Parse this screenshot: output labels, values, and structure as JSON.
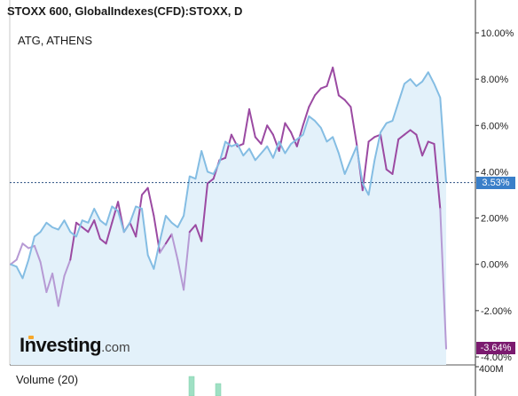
{
  "header": {
    "title": "STOXX 600, GlobalIndexes(CFD):STOXX, D",
    "compare_symbol": "ATG, ATHENS"
  },
  "logo": {
    "main": "Investing",
    "suffix": ".com"
  },
  "volume": {
    "label": "Volume (20)",
    "axis_label": "400M"
  },
  "badges": {
    "current_value": "3.53%",
    "athens_value": "-3.64%"
  },
  "colors": {
    "area_fill": "#e3f1fa",
    "area_line": "#84bde3",
    "athens_line": "#9b4aa2",
    "athens_line_light": "#b69ad4",
    "badge_blue": "#3a7fc9",
    "badge_purple": "#7b1a6f",
    "volume_bar": "#9fe0c4"
  },
  "chart_data": {
    "type": "line",
    "y_axis": {
      "side": "right",
      "unit": "%",
      "ylim": [
        -4.5,
        10.3
      ],
      "ticks": [
        10,
        8,
        6,
        4,
        2,
        0,
        -2,
        -4
      ],
      "tick_labels": [
        "10.00%",
        "8.00%",
        "6.00%",
        "4.00%",
        "2.00%",
        "0.00%",
        "-2.00%",
        "-4.00%"
      ]
    },
    "reference_line": {
      "value": 3.53,
      "label": "3.53%"
    },
    "grid": false,
    "legend": "top-left",
    "series": [
      {
        "name": "STOXX 600",
        "style": "area",
        "values": [
          0,
          -0.1,
          -0.6,
          0.2,
          1.2,
          1.4,
          1.8,
          1.6,
          1.5,
          1.9,
          1.4,
          1.2,
          1.9,
          1.8,
          2.4,
          1.9,
          1.7,
          2.5,
          2.3,
          1.4,
          1.8,
          2.5,
          2.4,
          0.4,
          -0.2,
          1.0,
          2.1,
          1.8,
          1.6,
          2.1,
          3.8,
          3.7,
          4.9,
          4.0,
          3.9,
          4.4,
          5.3,
          5.1,
          5.2,
          4.7,
          5.0,
          4.5,
          4.8,
          5.1,
          4.6,
          5.3,
          4.8,
          5.2,
          5.4,
          5.6,
          6.4,
          6.2,
          5.9,
          5.3,
          5.5,
          4.8,
          3.9,
          4.5,
          5.1,
          3.5,
          3.0,
          4.5,
          5.7,
          6.1,
          6.2,
          7.0,
          7.8,
          8.0,
          7.7,
          7.9,
          8.3,
          7.8,
          7.2,
          3.53
        ]
      },
      {
        "name": "ATG, ATHENS",
        "style": "line",
        "values": [
          0,
          0.2,
          0.9,
          0.7,
          0.8,
          0.1,
          -1.2,
          -0.4,
          -1.8,
          -0.5,
          0.2,
          1.8,
          1.6,
          1.4,
          1.9,
          1.1,
          0.9,
          1.8,
          2.7,
          1.4,
          1.8,
          1.2,
          3.0,
          3.3,
          2.1,
          0.5,
          0.9,
          1.3,
          0.2,
          -1.1,
          1.4,
          1.7,
          1.0,
          3.5,
          3.7,
          4.5,
          4.6,
          5.6,
          5.1,
          5.2,
          6.7,
          5.5,
          5.2,
          6.0,
          5.6,
          4.9,
          6.1,
          5.7,
          5.1,
          6.0,
          6.8,
          7.3,
          7.6,
          7.7,
          8.5,
          7.3,
          7.1,
          6.8,
          5.2,
          3.2,
          5.3,
          5.5,
          5.6,
          4.1,
          3.9,
          5.4,
          5.6,
          5.8,
          5.6,
          4.7,
          5.3,
          5.2,
          2.4,
          -3.64
        ]
      }
    ],
    "volume_bars": [
      0.55,
      0.35
    ]
  }
}
